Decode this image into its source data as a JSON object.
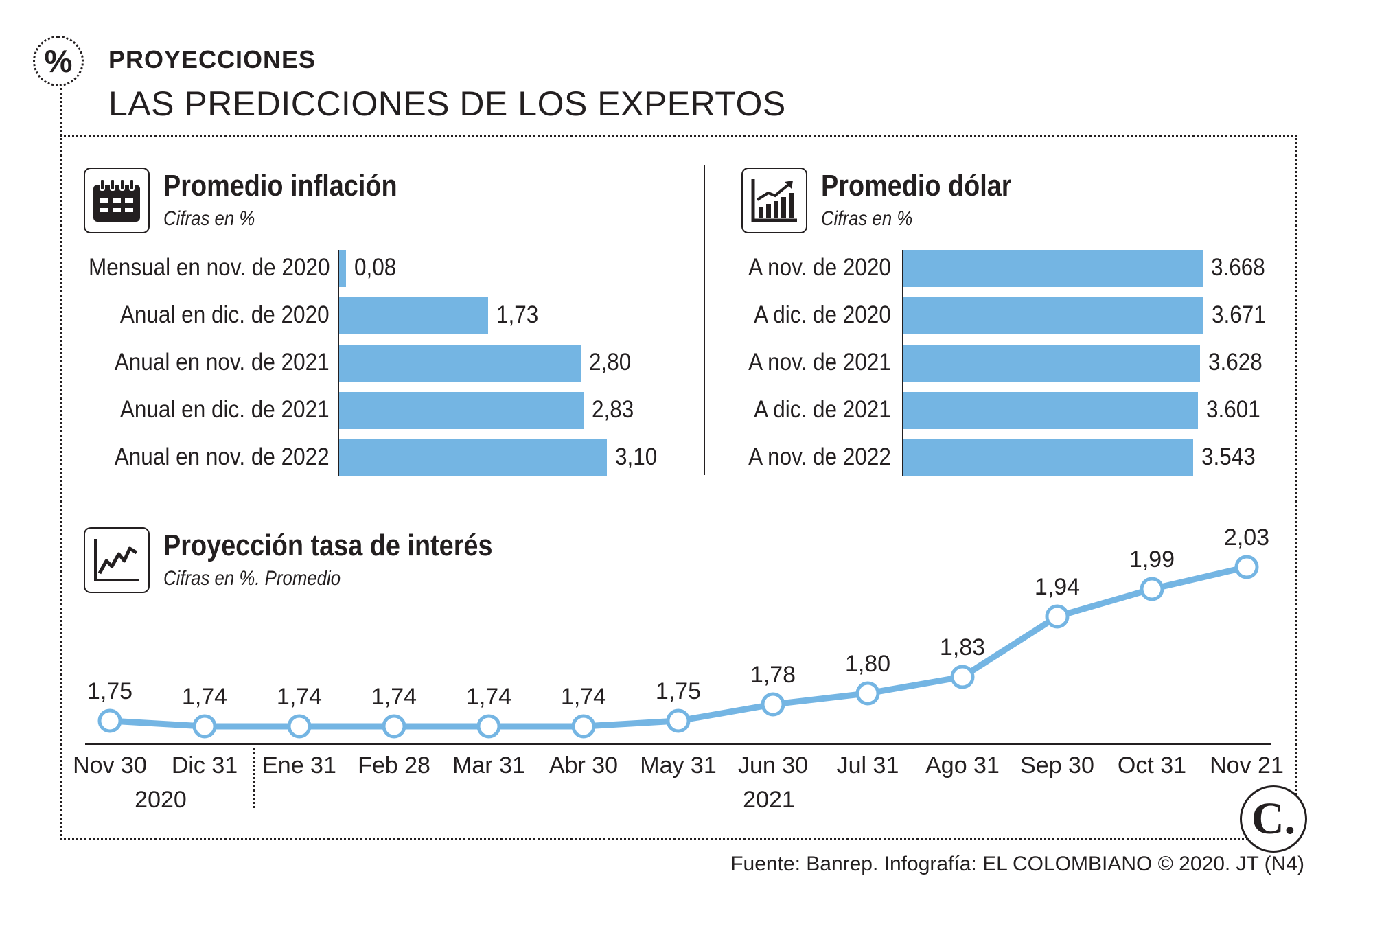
{
  "header": {
    "badge_symbol": "%",
    "section_label": "PROYECCIONES",
    "headline": "LAS PREDICCIONES DE LOS EXPERTOS"
  },
  "inflation": {
    "icon": "calendar-icon",
    "title": "Promedio inflación",
    "subtitle": "Cifras en %"
  },
  "dollar": {
    "icon": "rising-bar-chart-icon",
    "title": "Promedio dólar",
    "subtitle": "Cifras en %"
  },
  "rate": {
    "icon": "line-chart-icon",
    "title": "Proyección tasa de interés",
    "subtitle": "Cifras en %. Promedio",
    "year_2020": "2020",
    "year_2021": "2021"
  },
  "footer": {
    "source": "Fuente: Banrep. Infografía: EL COLOMBIANO © 2020. JT (N4)",
    "logo_letter": "C."
  },
  "colors": {
    "bar": "#74b5e3",
    "text": "#231f20",
    "line": "#74b5e3"
  },
  "chart_data": [
    {
      "type": "bar",
      "orientation": "horizontal",
      "title": "Promedio inflación",
      "subtitle": "Cifras en %",
      "categories": [
        "Mensual en nov. de 2020",
        "Anual en dic. de 2020",
        "Anual en nov. de 2021",
        "Anual en dic. de 2021",
        "Anual en nov. de 2022"
      ],
      "values": [
        0.08,
        1.73,
        2.8,
        2.83,
        3.1
      ],
      "value_labels": [
        "0,08",
        "1,73",
        "2,80",
        "2,83",
        "3,10"
      ],
      "xlim": [
        0,
        3.5
      ]
    },
    {
      "type": "bar",
      "orientation": "horizontal",
      "title": "Promedio dólar",
      "subtitle": "Cifras en %",
      "categories": [
        "A nov. de 2020",
        "A dic. de 2020",
        "A nov. de 2021",
        "A dic. de 2021",
        "A nov. de 2022"
      ],
      "values": [
        3668,
        3671,
        3628,
        3601,
        3543
      ],
      "value_labels": [
        "3.668",
        "3.671",
        "3.628",
        "3.601",
        "3.543"
      ],
      "xlim": [
        0,
        4000
      ]
    },
    {
      "type": "line",
      "title": "Proyección tasa de interés",
      "subtitle": "Cifras en %. Promedio",
      "categories": [
        "Nov 30",
        "Dic 31",
        "Ene 31",
        "Feb 28",
        "Mar 31",
        "Abr 30",
        "May 31",
        "Jun 30",
        "Jul 31",
        "Ago 31",
        "Sep 30",
        "Oct 31",
        "Nov 21"
      ],
      "values": [
        1.75,
        1.74,
        1.74,
        1.74,
        1.74,
        1.74,
        1.75,
        1.78,
        1.8,
        1.83,
        1.94,
        1.99,
        2.03
      ],
      "value_labels": [
        "1,75",
        "1,74",
        "1,74",
        "1,74",
        "1,74",
        "1,74",
        "1,75",
        "1,78",
        "1,80",
        "1,83",
        "1,94",
        "1,99",
        "2,03"
      ],
      "ylim": [
        1.74,
        2.03
      ]
    }
  ]
}
